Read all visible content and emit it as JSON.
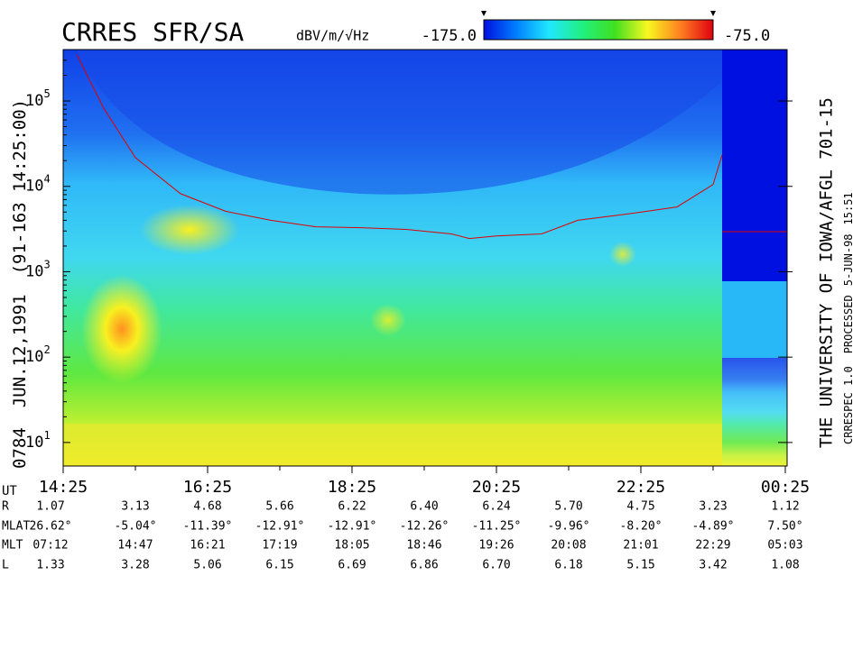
{
  "chart_data": {
    "type": "spectrogram",
    "title": "CRRES SFR/SA",
    "unit_label": "dBV/m/√Hz",
    "colorbar": {
      "range": [
        {
          "value": -175,
          "label": "-175.0"
        },
        {
          "value": -75,
          "label": "-75.0"
        }
      ],
      "colors": [
        "#0010e0",
        "#0080ff",
        "#20e8ff",
        "#20f080",
        "#40e020",
        "#f8f820",
        "#ff8020",
        "#e00010"
      ]
    },
    "left_labels": [
      "0784",
      "JUN.12,1991",
      "(91-163 14:25:00)"
    ],
    "right_labels": [
      "THE UNIVERSITY OF IOWA/AFGL 701-15",
      "CRRESPEC 1.0",
      "PROCESSED",
      "5-JUN-98",
      "15:51"
    ],
    "log_y": true,
    "xlim": [
      14.4167,
      24.4167
    ],
    "xticks": [
      {
        "value": 14.4167,
        "label": "14:25"
      },
      {
        "value": 16.4167,
        "label": "16:25"
      },
      {
        "value": 18.4167,
        "label": "18:25"
      },
      {
        "value": 20.4167,
        "label": "20:25"
      },
      {
        "value": 22.4167,
        "label": "22:25"
      },
      {
        "value": 24.4167,
        "label": "00:25"
      }
    ],
    "xminorticks": [
      15.4167,
      17.4167,
      19.4167,
      21.4167,
      23.4167
    ],
    "ylim": [
      5.3,
      400000
    ],
    "yticks": [
      {
        "value": 10,
        "label": "10",
        "exponent": "1"
      },
      {
        "value": 100,
        "label": "10",
        "exponent": "2"
      },
      {
        "value": 1000,
        "label": "10",
        "exponent": "3"
      },
      {
        "value": 10000,
        "label": "10",
        "exponent": "4"
      },
      {
        "value": 100000,
        "label": "10",
        "exponent": "5"
      }
    ],
    "series": [
      {
        "color": "#e00000",
        "x": [
          14.604,
          14.979,
          15.417,
          16.042,
          16.667,
          17.292,
          17.917,
          18.542,
          19.167,
          19.792,
          20.042,
          20.417,
          21.042,
          21.542,
          22.292,
          22.917,
          23.417,
          23.542
        ],
        "values": [
          350000,
          82000,
          21700,
          8200,
          5100,
          4000,
          3360,
          3280,
          3130,
          2770,
          2450,
          2630,
          2770,
          4000,
          4830,
          5730,
          10500,
          23300
        ]
      }
    ],
    "ephemeris": {
      "time_label": "UT",
      "rows": [
        {
          "label": "R",
          "values": [
            "1.07",
            "3.13",
            "4.68",
            "5.66",
            "6.22",
            "6.40",
            "6.24",
            "5.70",
            "4.75",
            "3.23",
            "1.12"
          ]
        },
        {
          "label": "MLAT",
          "values": [
            "26.62°",
            "-5.04°",
            "-11.39°",
            "-12.91°",
            "-12.91°",
            "-12.26°",
            "-11.25°",
            "-9.96°",
            "-8.20°",
            "-4.89°",
            "7.50°"
          ]
        },
        {
          "label": "MLT",
          "values": [
            "07:12",
            "14:47",
            "16:21",
            "17:19",
            "18:05",
            "18:46",
            "19:26",
            "20:08",
            "21:01",
            "22:29",
            "05:03"
          ]
        },
        {
          "label": "L",
          "values": [
            "1.33",
            "3.28",
            "5.06",
            "6.15",
            "6.69",
            "6.86",
            "6.70",
            "6.18",
            "5.15",
            "3.42",
            "1.08"
          ]
        }
      ]
    }
  }
}
